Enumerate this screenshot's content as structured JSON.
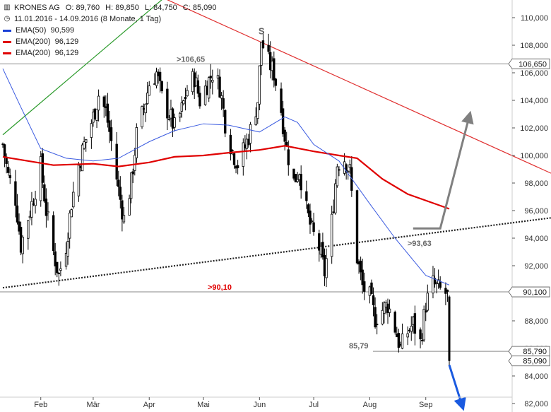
{
  "header": {
    "symbol": "KRONES AG",
    "open_label": "O:",
    "open": "89,760",
    "high_label": "H:",
    "high": "89,850",
    "low_label": "L:",
    "low": "84,750",
    "close_label": "C:",
    "close": "85,090",
    "period": "11.01.2016 - 14.09.2016 (8 Monate, 1 Tag)"
  },
  "legend": [
    {
      "name": "EMA(50)",
      "value": "90,599",
      "color": "#1a3fd6"
    },
    {
      "name": "EMA(200)",
      "value": "96,129",
      "color": "#e00000"
    },
    {
      "name": "EMA(200)",
      "value": "96,129",
      "color": "#e00000"
    }
  ],
  "colors": {
    "ema50": "#3b5be0",
    "ema200": "#e00000",
    "resistance": "#e03030",
    "uptrend": "#2a9a2a",
    "support": "#222222",
    "grey_arrow": "#808080",
    "blue_arrow": "#1a5ae0",
    "candles": "#000000",
    "axis_label_box": "#ffffff"
  },
  "chart_data": {
    "type": "candlestick",
    "y_axis": {
      "min": 82000,
      "max": 110000,
      "ticks": [
        82000,
        84000,
        86000,
        88000,
        90000,
        92000,
        94000,
        96000,
        98000,
        100000,
        102000,
        104000,
        106000,
        108000,
        110000
      ],
      "tick_labels": [
        "82,000",
        "84,000",
        "86,000",
        "88,000",
        "90,000",
        "92,000",
        "94,000",
        "96,000",
        "98,000",
        "100,000",
        "102,000",
        "104,000",
        "106,000",
        "108,000",
        "110,000"
      ],
      "position": "right"
    },
    "x_axis": {
      "start": "2016-01-11",
      "end": "2016-09-14",
      "month_labels": [
        {
          "date": "2016-02-01",
          "label": "Feb"
        },
        {
          "date": "2016-03-01",
          "label": "Mär"
        },
        {
          "date": "2016-04-01",
          "label": "Apr"
        },
        {
          "date": "2016-05-01",
          "label": "Mai"
        },
        {
          "date": "2016-06-01",
          "label": "Jun"
        },
        {
          "date": "2016-07-01",
          "label": "Jul"
        },
        {
          "date": "2016-08-01",
          "label": "Aug"
        },
        {
          "date": "2016-09-01",
          "label": "Sep"
        }
      ]
    },
    "price_series": [
      [
        "2016-01-11",
        100.8
      ],
      [
        "2016-01-14",
        98.5
      ],
      [
        "2016-01-18",
        96.9
      ],
      [
        "2016-01-21",
        93.5
      ],
      [
        "2016-01-25",
        95.5
      ],
      [
        "2016-01-28",
        97.0
      ],
      [
        "2016-02-01",
        99.2
      ],
      [
        "2016-02-04",
        96.0
      ],
      [
        "2016-02-08",
        93.0
      ],
      [
        "2016-02-11",
        91.3
      ],
      [
        "2016-02-15",
        93.5
      ],
      [
        "2016-02-18",
        96.6
      ],
      [
        "2016-02-22",
        99.3
      ],
      [
        "2016-02-25",
        100.8
      ],
      [
        "2016-03-01",
        102.8
      ],
      [
        "2016-03-04",
        104.4
      ],
      [
        "2016-03-08",
        103.2
      ],
      [
        "2016-03-11",
        101.0
      ],
      [
        "2016-03-15",
        97.5
      ],
      [
        "2016-03-18",
        95.4
      ],
      [
        "2016-03-22",
        98.0
      ],
      [
        "2016-03-25",
        101.5
      ],
      [
        "2016-03-29",
        103.4
      ],
      [
        "2016-04-01",
        105.2
      ],
      [
        "2016-04-05",
        106.0
      ],
      [
        "2016-04-08",
        104.2
      ],
      [
        "2016-04-12",
        103.0
      ],
      [
        "2016-04-15",
        102.0
      ],
      [
        "2016-04-19",
        103.3
      ],
      [
        "2016-04-22",
        104.8
      ],
      [
        "2016-04-26",
        105.7
      ],
      [
        "2016-04-29",
        104.0
      ],
      [
        "2016-05-03",
        105.2
      ],
      [
        "2016-05-06",
        106.0
      ],
      [
        "2016-05-10",
        105.0
      ],
      [
        "2016-05-13",
        102.4
      ],
      [
        "2016-05-17",
        100.3
      ],
      [
        "2016-05-20",
        99.4
      ],
      [
        "2016-05-24",
        100.6
      ],
      [
        "2016-05-27",
        101.8
      ],
      [
        "2016-05-31",
        104.0
      ],
      [
        "2016-06-02",
        108.3
      ],
      [
        "2016-06-06",
        106.8
      ],
      [
        "2016-06-09",
        106.0
      ],
      [
        "2016-06-13",
        103.3
      ],
      [
        "2016-06-16",
        100.5
      ],
      [
        "2016-06-20",
        98.1
      ],
      [
        "2016-06-23",
        99.0
      ],
      [
        "2016-06-27",
        96.0
      ],
      [
        "2016-06-30",
        94.5
      ],
      [
        "2016-07-04",
        93.3
      ],
      [
        "2016-07-07",
        91.5
      ],
      [
        "2016-07-11",
        95.2
      ],
      [
        "2016-07-14",
        99.4
      ],
      [
        "2016-07-18",
        99.8
      ],
      [
        "2016-07-21",
        98.8
      ],
      [
        "2016-07-25",
        92.6
      ],
      [
        "2016-07-28",
        90.5
      ],
      [
        "2016-08-01",
        89.7
      ],
      [
        "2016-08-04",
        88.2
      ],
      [
        "2016-08-08",
        88.8
      ],
      [
        "2016-08-11",
        89.2
      ],
      [
        "2016-08-15",
        87.5
      ],
      [
        "2016-08-18",
        86.0
      ],
      [
        "2016-08-22",
        87.2
      ],
      [
        "2016-08-25",
        87.8
      ],
      [
        "2016-08-29",
        86.4
      ],
      [
        "2016-09-01",
        89.2
      ],
      [
        "2016-09-05",
        90.7
      ],
      [
        "2016-09-08",
        90.3
      ],
      [
        "2016-09-12",
        90.0
      ],
      [
        "2016-09-13",
        89.76
      ],
      [
        "2016-09-14",
        85.09
      ]
    ],
    "last_candle": {
      "date": "2016-09-14",
      "open": 89760,
      "high": 89850,
      "low": 84750,
      "close": 85090
    },
    "ema50": [
      [
        "2016-01-11",
        106.3
      ],
      [
        "2016-01-21",
        103.5
      ],
      [
        "2016-02-01",
        100.5
      ],
      [
        "2016-02-15",
        99.8
      ],
      [
        "2016-03-01",
        99.6
      ],
      [
        "2016-03-15",
        99.8
      ],
      [
        "2016-04-01",
        101.0
      ],
      [
        "2016-04-15",
        101.8
      ],
      [
        "2016-05-01",
        102.3
      ],
      [
        "2016-05-15",
        102.2
      ],
      [
        "2016-06-01",
        101.7
      ],
      [
        "2016-06-15",
        102.8
      ],
      [
        "2016-06-22",
        102.4
      ],
      [
        "2016-07-01",
        100.8
      ],
      [
        "2016-07-15",
        99.6
      ],
      [
        "2016-08-01",
        96.5
      ],
      [
        "2016-08-15",
        94.0
      ],
      [
        "2016-09-01",
        91.3
      ],
      [
        "2016-09-14",
        90.6
      ]
    ],
    "ema200": [
      [
        "2016-01-11",
        99.9
      ],
      [
        "2016-01-25",
        99.6
      ],
      [
        "2016-02-08",
        99.3
      ],
      [
        "2016-03-01",
        99.4
      ],
      [
        "2016-03-15",
        99.2
      ],
      [
        "2016-04-01",
        99.5
      ],
      [
        "2016-04-15",
        99.9
      ],
      [
        "2016-05-01",
        100.0
      ],
      [
        "2016-05-15",
        100.2
      ],
      [
        "2016-06-01",
        100.4
      ],
      [
        "2016-06-15",
        100.7
      ],
      [
        "2016-07-01",
        100.3
      ],
      [
        "2016-07-15",
        100.0
      ],
      [
        "2016-07-25",
        99.8
      ],
      [
        "2016-08-08",
        98.3
      ],
      [
        "2016-08-22",
        97.2
      ],
      [
        "2016-09-14",
        96.13
      ]
    ],
    "horizontal_levels": [
      {
        "value": 106650,
        "label": "106,650",
        "annotation": ">106,65"
      },
      {
        "value": 90100,
        "label": "90,100",
        "annotation": ">90,10"
      },
      {
        "value": 85790,
        "label": "85,790",
        "annotation": "85,79"
      },
      {
        "value": 85090,
        "label": "85,090"
      }
    ],
    "trendlines": [
      {
        "kind": "resistance",
        "from": [
          "2016-04-11",
          111.3
        ],
        "to": [
          "2016-09-30",
          101.1
        ]
      },
      {
        "kind": "support-dotted",
        "from": [
          "2016-01-11",
          90.4
        ],
        "to": [
          "2016-09-30",
          94.8
        ]
      },
      {
        "kind": "uptrend",
        "from": [
          "2016-01-11",
          101.5
        ],
        "to": [
          "2016-04-08",
          111.3
        ]
      }
    ],
    "annotations": [
      {
        "text": "S",
        "date": "2016-06-02",
        "value": 108.5
      },
      {
        "text": ">93,63",
        "date": "2016-08-25",
        "value": 93.63
      }
    ],
    "arrows": [
      {
        "kind": "scenario-up",
        "path": [
          [
            "2016-08-25",
            94.7
          ],
          [
            "2016-09-09",
            94.7
          ],
          [
            "2016-09-25",
            102.8
          ]
        ]
      },
      {
        "kind": "scenario-down",
        "path": [
          [
            "2016-09-14",
            84.8
          ],
          [
            "2016-09-21",
            81.9
          ]
        ]
      }
    ]
  }
}
